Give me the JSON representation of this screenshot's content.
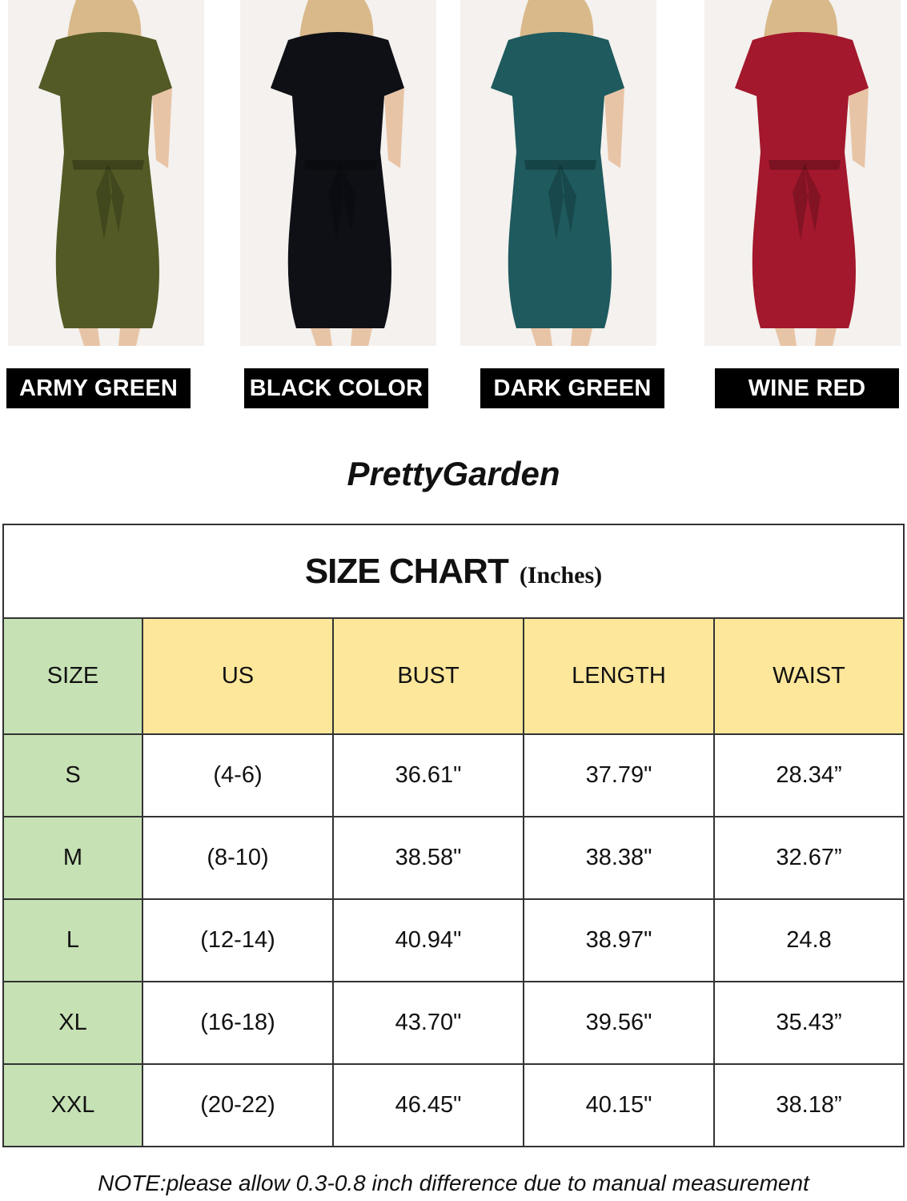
{
  "products": [
    {
      "label": "ARMY GREEN",
      "color": "#535a25"
    },
    {
      "label": "BLACK COLOR",
      "color": "#0e1016"
    },
    {
      "label": "DARK GREEN",
      "color": "#1e5a5e"
    },
    {
      "label": "WINE RED",
      "color": "#a3182c"
    }
  ],
  "brand": "PrettyGarden",
  "size_chart": {
    "title": "SIZE CHART",
    "unit": "(Inches)",
    "headers": [
      "SIZE",
      "US",
      "BUST",
      "LENGTH",
      "WAIST"
    ],
    "rows": [
      [
        "S",
        "(4-6)",
        "36.61\"",
        "37.79\"",
        "28.34”"
      ],
      [
        "M",
        "(8-10)",
        "38.58\"",
        "38.38\"",
        "32.67”"
      ],
      [
        "L",
        "(12-14)",
        "40.94\"",
        "38.97\"",
        "24.8"
      ],
      [
        "XL",
        "(16-18)",
        "43.70\"",
        "39.56\"",
        "35.43”"
      ],
      [
        "XXL",
        "(20-22)",
        "46.45\"",
        "40.15\"",
        "38.18”"
      ]
    ],
    "colors": {
      "size_column": "#c6e1b4",
      "header": "#fde79b"
    }
  },
  "note": "NOTE:please allow 0.3-0.8 inch difference due to manual measurement"
}
